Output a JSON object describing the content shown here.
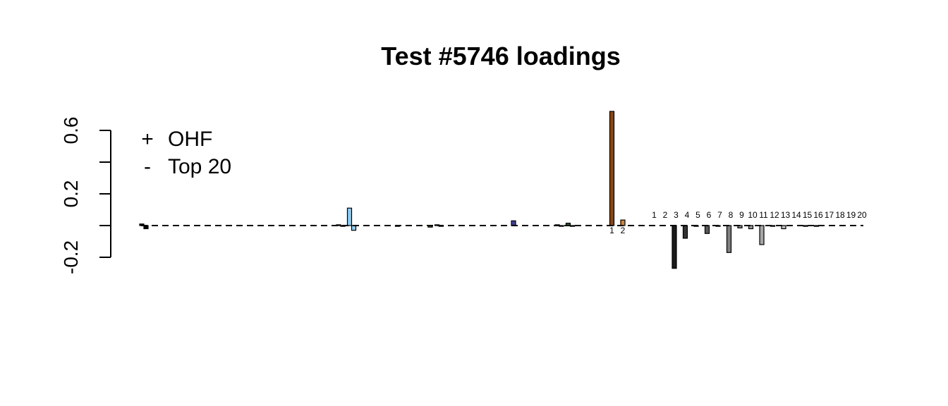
{
  "chart_data": {
    "type": "bar",
    "title": "Test #5746 loadings",
    "xlabel": "",
    "ylabel": "",
    "ylim": [
      -0.2,
      0.6
    ],
    "yticks": [
      -0.2,
      0.2,
      0.6
    ],
    "yticks_minor": [
      0.0,
      0.4
    ],
    "legend": {
      "placement": "top-left",
      "entries": [
        {
          "symbol": "+",
          "label": "OHF"
        },
        {
          "symbol": "-",
          "label": "Top 20"
        }
      ]
    },
    "baseline": 0,
    "groups": [
      {
        "pos": 0.01,
        "neg": -0.02,
        "pos_color": "#111111",
        "neg_color": "#000000"
      },
      {
        "pos": 0.0,
        "neg": 0.0,
        "pos_color": "#222222",
        "neg_color": "#222222"
      },
      {
        "pos": 0.0,
        "neg": 0.0,
        "pos_color": "#222222",
        "neg_color": "#222222"
      },
      {
        "pos": 0.0,
        "neg": 0.0,
        "pos_color": "#222222",
        "neg_color": "#222222"
      },
      {
        "pos": 0.0,
        "neg": 0.0,
        "pos_color": "#222222",
        "neg_color": "#222222"
      },
      {
        "pos": 0.0,
        "neg": 0.0,
        "pos_color": "#222222",
        "neg_color": "#222222"
      },
      {
        "pos": 0.0,
        "neg": 0.0,
        "pos_color": "#222222",
        "neg_color": "#222222"
      },
      {
        "pos": 0.0,
        "neg": 0.0,
        "pos_color": "#222222",
        "neg_color": "#222222"
      },
      {
        "pos": 0.0,
        "neg": 0.0,
        "pos_color": "#222222",
        "neg_color": "#222222"
      },
      {
        "pos": 0.0,
        "neg": 0.0,
        "pos_color": "#222222",
        "neg_color": "#222222"
      },
      {
        "pos": 0.0,
        "neg": 0.0,
        "pos_color": "#222222",
        "neg_color": "#222222"
      },
      {
        "pos": 0.0,
        "neg": 0.0,
        "pos_color": "#222222",
        "neg_color": "#222222"
      },
      {
        "pos": 0.0,
        "neg": 0.0,
        "pos_color": "#222222",
        "neg_color": "#222222"
      },
      {
        "pos": 0.0,
        "neg": 0.0,
        "pos_color": "#222222",
        "neg_color": "#222222"
      },
      {
        "pos": 0.0,
        "neg": 0.0,
        "pos_color": "#222222",
        "neg_color": "#222222"
      },
      {
        "pos": 0.0,
        "neg": 0.0,
        "pos_color": "#222222",
        "neg_color": "#222222"
      },
      {
        "pos": 0.0,
        "neg": 0.0,
        "pos_color": "#222222",
        "neg_color": "#222222"
      },
      {
        "pos": 0.0,
        "neg": 0.0,
        "pos_color": "#222222",
        "neg_color": "#222222"
      },
      {
        "pos": 0.005,
        "neg": -0.005,
        "pos_color": "#333333",
        "neg_color": "#333333"
      },
      {
        "pos": 0.11,
        "neg": -0.03,
        "pos_color": "#87cefa",
        "neg_color": "#87cefa"
      },
      {
        "pos": 0.0,
        "neg": 0.0,
        "pos_color": "#222222",
        "neg_color": "#222222"
      },
      {
        "pos": 0.0,
        "neg": 0.0,
        "pos_color": "#222222",
        "neg_color": "#222222"
      },
      {
        "pos": 0.0,
        "neg": 0.0,
        "pos_color": "#222222",
        "neg_color": "#222222"
      },
      {
        "pos": 0.0,
        "neg": -0.005,
        "pos_color": "#444444",
        "neg_color": "#444444"
      },
      {
        "pos": 0.0,
        "neg": 0.0,
        "pos_color": "#222222",
        "neg_color": "#222222"
      },
      {
        "pos": 0.0,
        "neg": 0.0,
        "pos_color": "#222222",
        "neg_color": "#222222"
      },
      {
        "pos": 0.0,
        "neg": -0.01,
        "pos_color": "#556b2f",
        "neg_color": "#556b2f"
      },
      {
        "pos": 0.005,
        "neg": -0.005,
        "pos_color": "#444444",
        "neg_color": "#444444"
      },
      {
        "pos": 0.0,
        "neg": 0.0,
        "pos_color": "#222222",
        "neg_color": "#222222"
      },
      {
        "pos": 0.0,
        "neg": 0.0,
        "pos_color": "#222222",
        "neg_color": "#222222"
      },
      {
        "pos": 0.0,
        "neg": 0.0,
        "pos_color": "#222222",
        "neg_color": "#222222"
      },
      {
        "pos": 0.0,
        "neg": 0.0,
        "pos_color": "#222222",
        "neg_color": "#222222"
      },
      {
        "pos": 0.0,
        "neg": 0.0,
        "pos_color": "#222222",
        "neg_color": "#222222"
      },
      {
        "pos": 0.0,
        "neg": 0.0,
        "pos_color": "#222222",
        "neg_color": "#222222"
      },
      {
        "pos": 0.03,
        "neg": 0.0,
        "pos_color": "#4040a0",
        "neg_color": "#4040a0"
      },
      {
        "pos": 0.0,
        "neg": 0.0,
        "pos_color": "#222222",
        "neg_color": "#222222"
      },
      {
        "pos": 0.0,
        "neg": 0.0,
        "pos_color": "#222222",
        "neg_color": "#222222"
      },
      {
        "pos": 0.0,
        "neg": 0.0,
        "pos_color": "#222222",
        "neg_color": "#222222"
      },
      {
        "pos": 0.005,
        "neg": -0.005,
        "pos_color": "#444444",
        "neg_color": "#444444"
      },
      {
        "pos": 0.015,
        "neg": -0.005,
        "pos_color": "#2e5e2e",
        "neg_color": "#2e5e2e"
      },
      {
        "pos": 0.0,
        "neg": 0.0,
        "pos_color": "#222222",
        "neg_color": "#222222"
      },
      {
        "pos": 0.0,
        "neg": 0.0,
        "pos_color": "#222222",
        "neg_color": "#222222"
      },
      {
        "pos": 0.0,
        "neg": 0.0,
        "pos_color": "#222222",
        "neg_color": "#222222"
      },
      {
        "pos": 0.72,
        "neg": 0.0,
        "pos_color": "#8b4513",
        "neg_color": "#8b4513"
      },
      {
        "pos": 0.035,
        "neg": 0.0,
        "pos_color": "#cd853f",
        "neg_color": "#cd853f"
      }
    ],
    "ohf_labels": [
      "1",
      "2"
    ],
    "top20": {
      "labels": [
        "1",
        "2",
        "3",
        "4",
        "5",
        "6",
        "7",
        "8",
        "9",
        "10",
        "11",
        "12",
        "13",
        "14",
        "15",
        "16",
        "17",
        "18",
        "19",
        "20"
      ],
      "values": [
        0.0,
        -0.27,
        -0.08,
        -0.005,
        -0.05,
        -0.005,
        -0.17,
        -0.015,
        -0.02,
        -0.12,
        -0.005,
        -0.02,
        0.0,
        -0.005,
        -0.005,
        0.0,
        0.0,
        0.0,
        0.0,
        0.0
      ],
      "colors": [
        "#000000",
        "#1a1a1a",
        "#333333",
        "#404040",
        "#595959",
        "#666666",
        "#808080",
        "#8c8c8c",
        "#999999",
        "#a6a6a6",
        "#b3b3b3",
        "#bfbfbf",
        "#cccccc",
        "#d9d9d9",
        "#e0e0e0",
        "#e6e6e6",
        "#ececec",
        "#f0f0f0",
        "#f5f5f5",
        "#fafafa"
      ]
    }
  }
}
